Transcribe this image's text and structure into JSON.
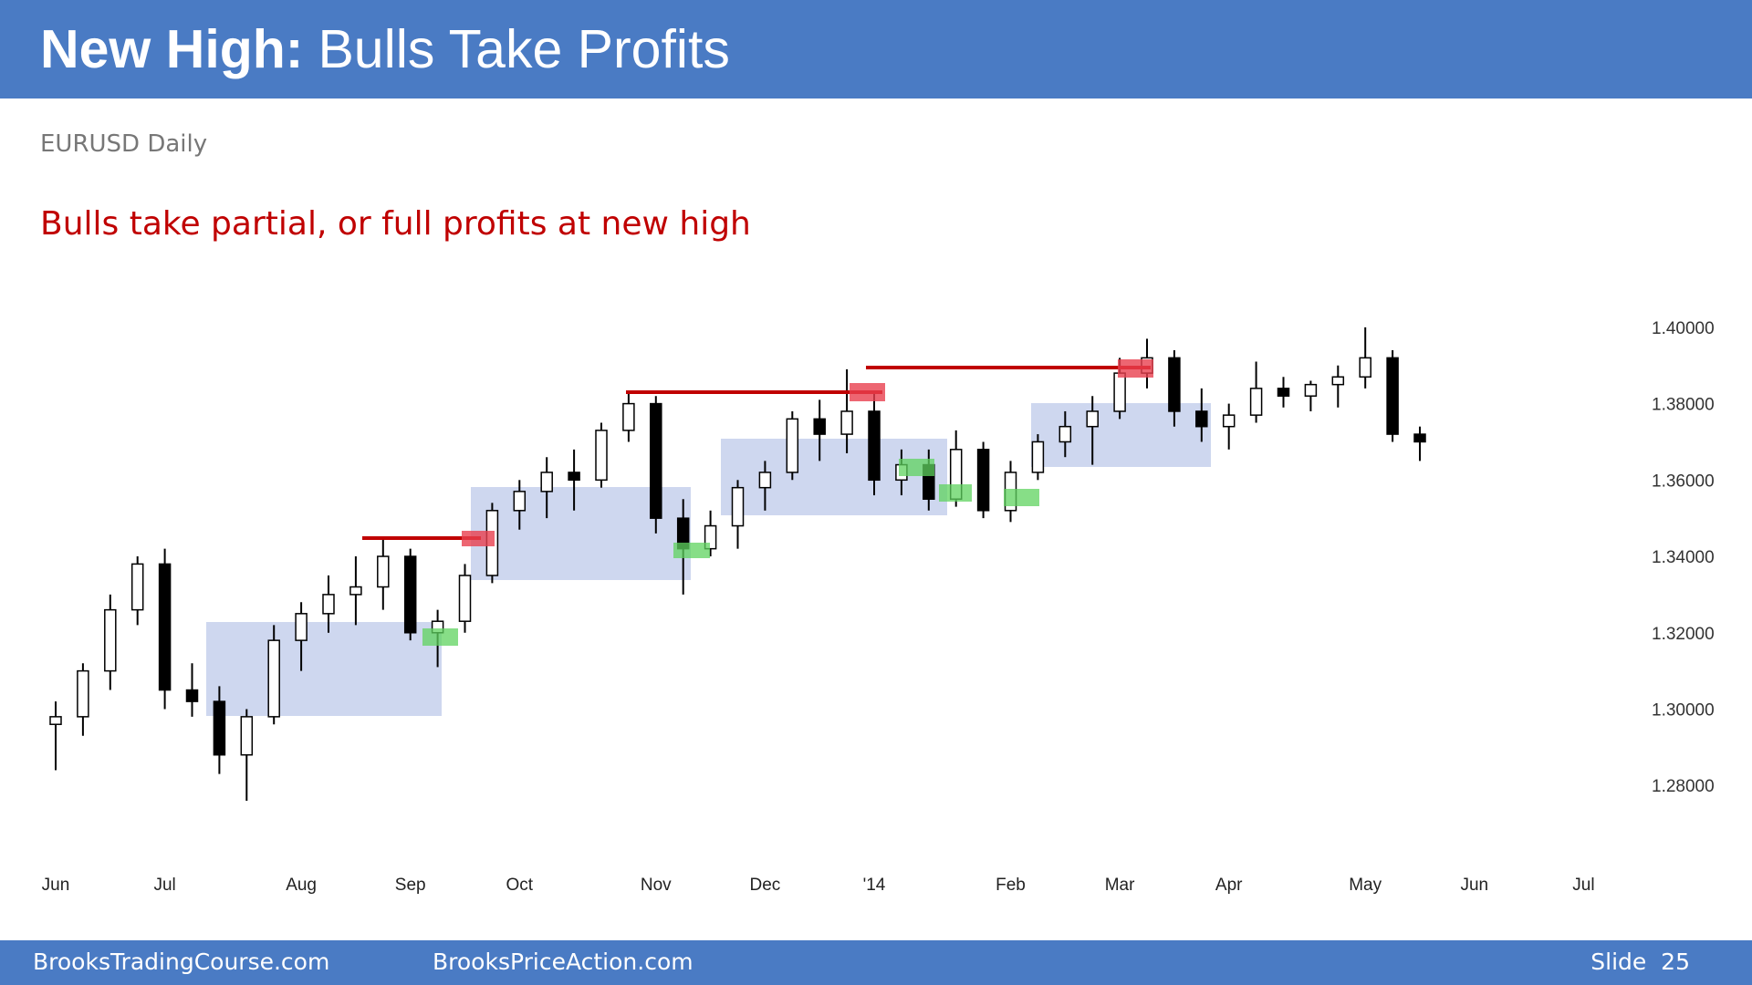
{
  "header": {
    "title_bold": "New High:",
    "title_rest": "Bulls Take Profits"
  },
  "chart_data": {
    "type": "candlestick",
    "subtitle": "EURUSD Daily",
    "annotation": "Bulls take partial, or full profits at new high",
    "categories": [
      "Jun",
      null,
      null,
      null,
      "Jul",
      null,
      null,
      null,
      null,
      "Aug",
      null,
      null,
      null,
      "Sep",
      null,
      null,
      null,
      "Oct",
      null,
      null,
      null,
      null,
      "Nov",
      null,
      null,
      null,
      "Dec",
      null,
      null,
      null,
      "'14",
      null,
      null,
      null,
      null,
      "Feb",
      null,
      null,
      null,
      "Mar",
      null,
      null,
      null,
      "Apr",
      null,
      null,
      null,
      null,
      "May",
      null,
      null,
      null,
      "Jun",
      null,
      null,
      null,
      "Jul",
      null
    ],
    "open": [
      1.296,
      1.298,
      1.31,
      1.326,
      1.338,
      1.305,
      1.302,
      1.288,
      1.298,
      1.318,
      1.325,
      1.33,
      1.332,
      1.34,
      1.32,
      1.323,
      1.335,
      1.352,
      1.357,
      1.362,
      1.36,
      1.373,
      1.38,
      1.35,
      1.342,
      1.348,
      1.358,
      1.362,
      1.376,
      1.372,
      1.378,
      1.36,
      1.364,
      1.355,
      1.368,
      1.352,
      1.362,
      1.37,
      1.374,
      1.378,
      1.388,
      1.392,
      1.378,
      1.374,
      1.377,
      1.384,
      1.382,
      1.385,
      1.387,
      1.392,
      1.372,
      null,
      null,
      null,
      null,
      null,
      null,
      null
    ],
    "high": [
      1.302,
      1.312,
      1.33,
      1.34,
      1.342,
      1.312,
      1.306,
      1.3,
      1.322,
      1.328,
      1.335,
      1.34,
      1.345,
      1.342,
      1.326,
      1.338,
      1.354,
      1.36,
      1.366,
      1.368,
      1.375,
      1.383,
      1.382,
      1.355,
      1.352,
      1.36,
      1.365,
      1.378,
      1.381,
      1.389,
      1.383,
      1.368,
      1.368,
      1.373,
      1.37,
      1.365,
      1.372,
      1.378,
      1.382,
      1.392,
      1.397,
      1.394,
      1.384,
      1.38,
      1.391,
      1.387,
      1.386,
      1.39,
      1.4,
      1.394,
      1.374,
      null,
      null,
      null,
      null,
      null,
      null,
      null
    ],
    "low": [
      1.284,
      1.293,
      1.305,
      1.322,
      1.3,
      1.298,
      1.283,
      1.276,
      1.296,
      1.31,
      1.32,
      1.322,
      1.326,
      1.318,
      1.311,
      1.32,
      1.333,
      1.347,
      1.35,
      1.352,
      1.358,
      1.37,
      1.346,
      1.33,
      1.34,
      1.342,
      1.352,
      1.36,
      1.365,
      1.367,
      1.356,
      1.356,
      1.352,
      1.353,
      1.35,
      1.349,
      1.36,
      1.366,
      1.364,
      1.376,
      1.384,
      1.374,
      1.37,
      1.368,
      1.375,
      1.379,
      1.378,
      1.379,
      1.384,
      1.37,
      1.365,
      null,
      null,
      null,
      null,
      null,
      null,
      null
    ],
    "close": [
      1.298,
      1.31,
      1.326,
      1.338,
      1.305,
      1.302,
      1.288,
      1.298,
      1.318,
      1.325,
      1.33,
      1.332,
      1.34,
      1.32,
      1.323,
      1.335,
      1.352,
      1.357,
      1.362,
      1.36,
      1.373,
      1.38,
      1.35,
      1.342,
      1.348,
      1.358,
      1.362,
      1.376,
      1.372,
      1.378,
      1.36,
      1.364,
      1.355,
      1.368,
      1.352,
      1.362,
      1.37,
      1.374,
      1.378,
      1.388,
      1.392,
      1.378,
      1.374,
      1.377,
      1.384,
      1.382,
      1.385,
      1.387,
      1.392,
      1.372,
      1.37,
      null,
      null,
      null,
      null,
      null,
      null,
      null
    ],
    "ylim": [
      1.265,
      1.41
    ],
    "yticks": [
      {
        "value": 1.28,
        "label": "1.28000"
      },
      {
        "value": 1.3,
        "label": "1.30000"
      },
      {
        "value": 1.32,
        "label": "1.32000"
      },
      {
        "value": 1.34,
        "label": "1.34000"
      },
      {
        "value": 1.36,
        "label": "1.36000"
      },
      {
        "value": 1.38,
        "label": "1.38000"
      },
      {
        "value": 1.4,
        "label": "1.40000"
      }
    ],
    "grid": false
  },
  "footer": {
    "left": "BrooksTradingCourse.com",
    "middle": "BrooksPriceAction.com",
    "right": "Slide  25"
  }
}
